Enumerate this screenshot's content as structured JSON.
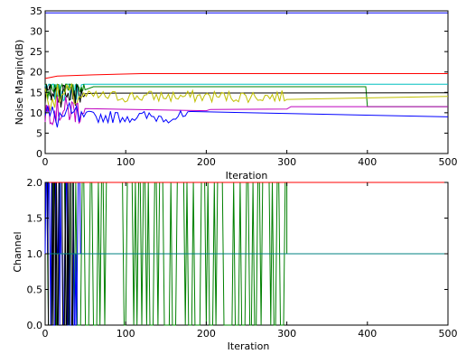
{
  "chart_data": [
    {
      "type": "line",
      "xlabel": "Iteration",
      "ylabel": "Noise Margin(dB)",
      "xlim": [
        0,
        500
      ],
      "ylim": [
        0,
        35
      ],
      "x_ticks": [
        "0",
        "100",
        "200",
        "300",
        "400",
        "500"
      ],
      "y_ticks": [
        "0",
        "5",
        "10",
        "15",
        "20",
        "25",
        "30",
        "35"
      ],
      "grid": false,
      "series": [
        {
          "color": "#0000ff",
          "points": [
            [
              0,
              34.5
            ],
            [
              500,
              34.5
            ]
          ]
        },
        {
          "color": "#ff0000",
          "points": [
            [
              0,
              18.4
            ],
            [
              15,
              19.0
            ],
            [
              60,
              19.3
            ],
            [
              120,
              19.6
            ],
            [
              500,
              19.6
            ]
          ]
        },
        {
          "color": "#00bfbf",
          "points": [
            [
              0,
              16.2
            ],
            [
              50,
              16.6
            ],
            [
              150,
              17.0
            ],
            [
              500,
              17.0
            ]
          ]
        },
        {
          "color": "#008000",
          "points": [
            [
              0,
              16.5
            ],
            [
              60,
              16.4
            ],
            [
              300,
              16.4
            ],
            [
              398,
              16.4
            ],
            [
              400,
              11.5
            ],
            [
              500,
              11.5
            ]
          ]
        },
        {
          "color": "#000000",
          "points": [
            [
              0,
              14.8
            ],
            [
              60,
              14.8
            ],
            [
              500,
              14.9
            ]
          ]
        },
        {
          "color": "#c0c000",
          "points": [
            [
              0,
              14.0
            ],
            [
              90,
              13.9
            ],
            [
              500,
              14.0
            ]
          ]
        },
        {
          "color": "#bf00bf",
          "points": [
            [
              0,
              10.6
            ],
            [
              200,
              10.5
            ],
            [
              205,
              10.8
            ],
            [
              300,
              10.9
            ],
            [
              305,
              11.5
            ],
            [
              500,
              11.5
            ]
          ]
        },
        {
          "color": "#0000ff",
          "points": [
            [
              0,
              9.0
            ],
            [
              50,
              9.0
            ],
            [
              180,
              9.0
            ],
            [
              185,
              9.0
            ],
            [
              500,
              9.0
            ]
          ]
        }
      ]
    },
    {
      "type": "line",
      "xlabel": "Iteration",
      "ylabel": "Channel",
      "xlim": [
        0,
        500
      ],
      "ylim": [
        0,
        2.0
      ],
      "x_ticks": [
        "0",
        "100",
        "200",
        "300",
        "400",
        "500"
      ],
      "y_ticks": [
        "0.0",
        "0.5",
        "1.0",
        "1.5",
        "2.0"
      ],
      "grid": false,
      "series": [
        {
          "color": "#008000",
          "description": "switches between 0 and 2 until iteration ~300, then 1"
        },
        {
          "color": "#0000ff",
          "description": "switches between 0, 1 and 2 until iteration ~45, then 1"
        },
        {
          "color": "#000000",
          "description": "switches between 0 and 2 until iteration ~35"
        },
        {
          "color": "#ff0000",
          "points": [
            [
              0,
              2.0
            ],
            [
              500,
              2.0
            ]
          ]
        },
        {
          "color": "#008080",
          "points": [
            [
              0,
              1.0
            ],
            [
              500,
              1.0
            ]
          ]
        }
      ]
    }
  ]
}
